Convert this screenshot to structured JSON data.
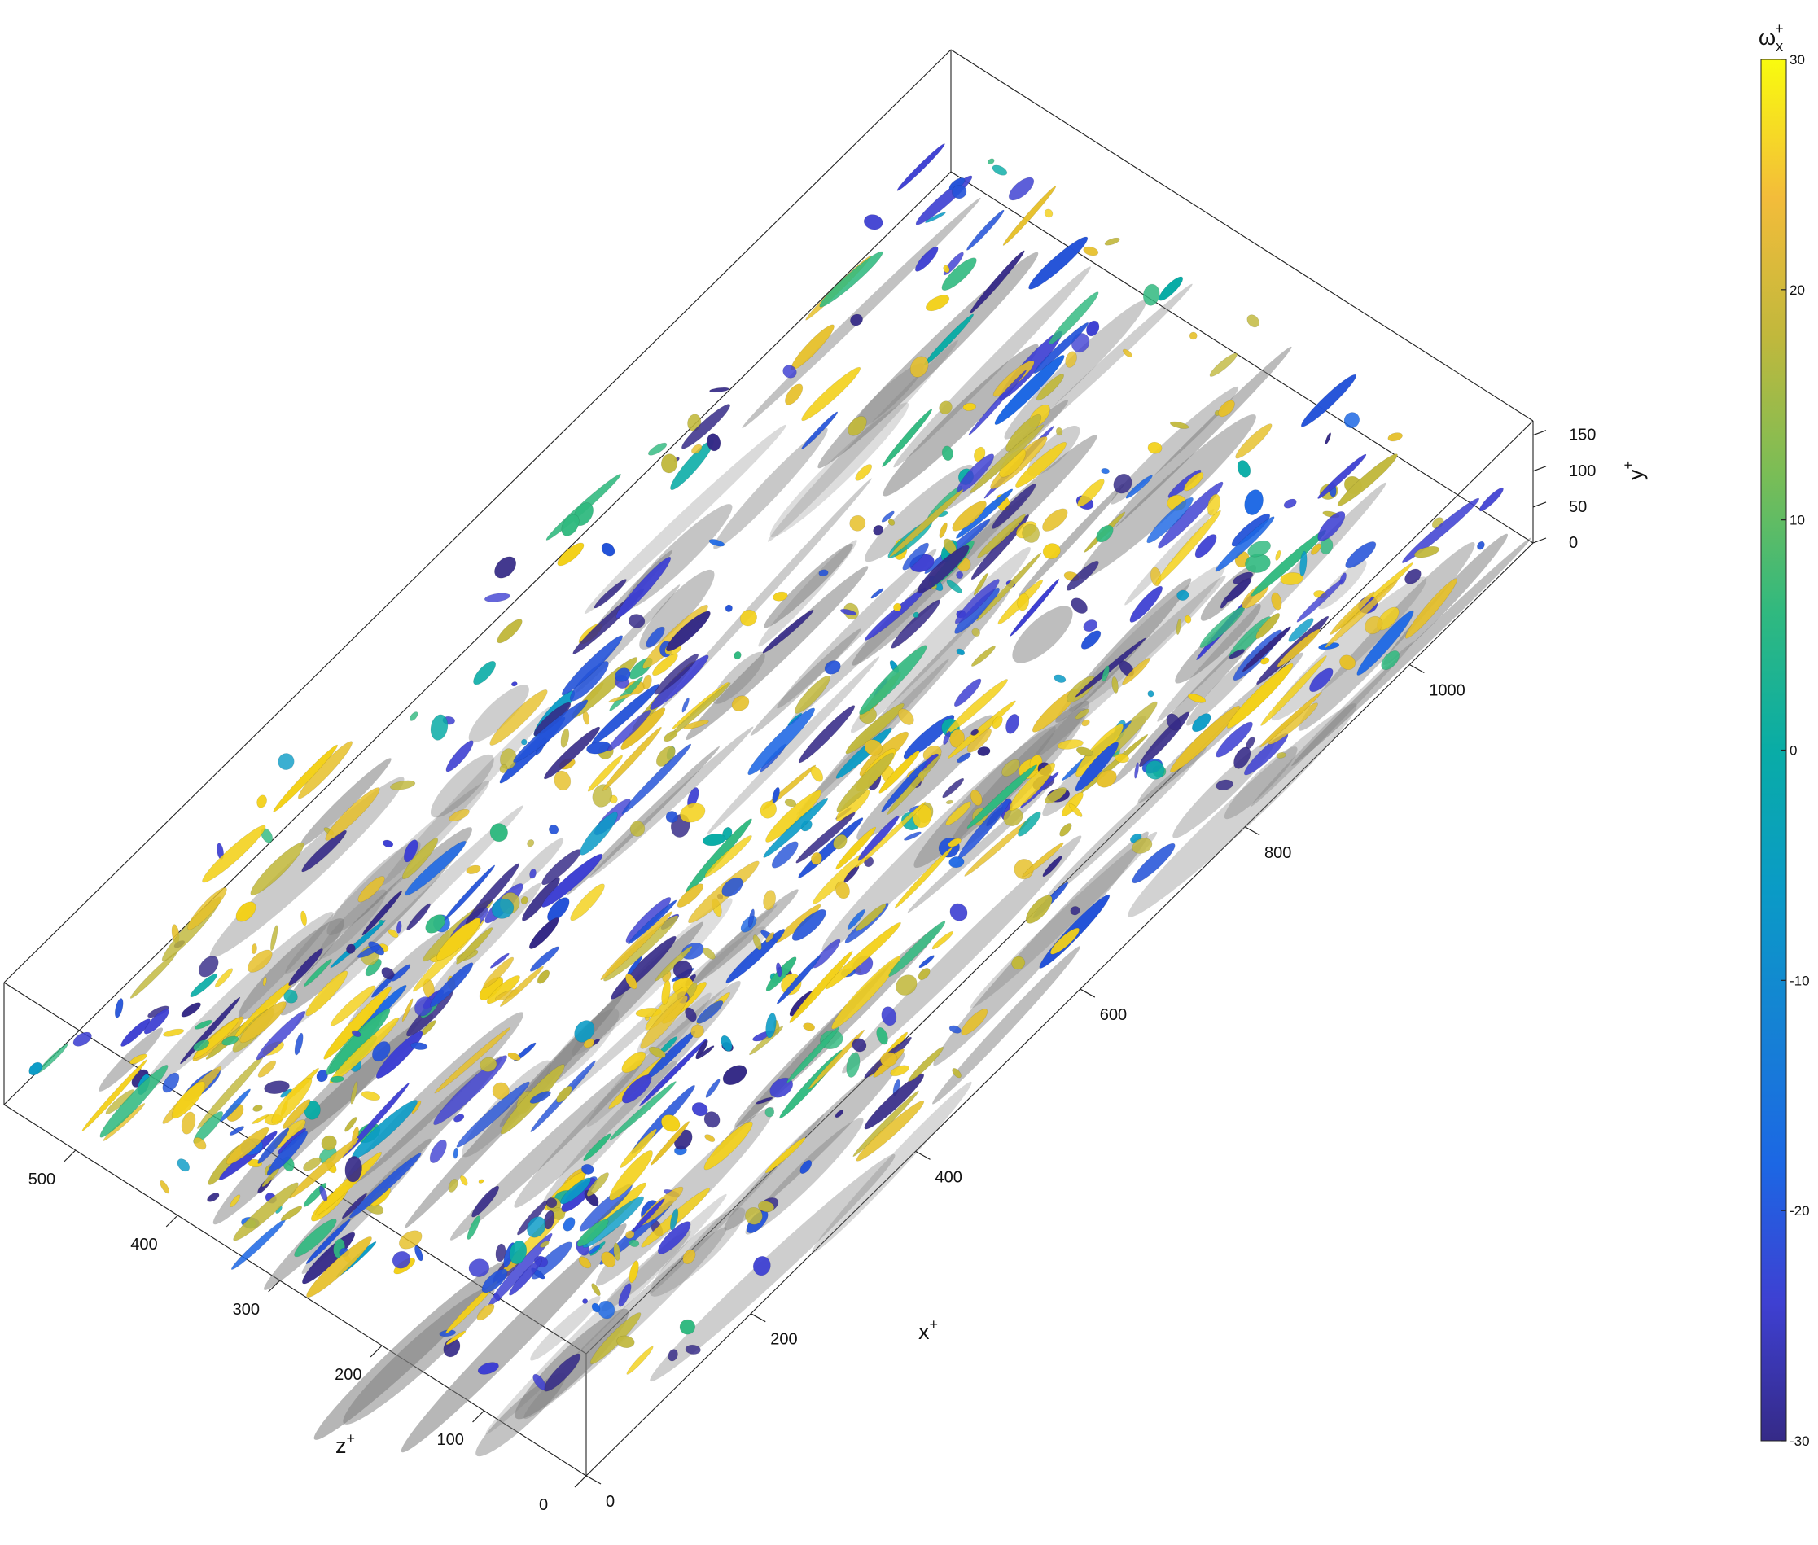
{
  "chart_data": {
    "type": "isosurface-3d",
    "axes": {
      "x": {
        "label": "x",
        "sup": "+",
        "ticks": [
          0,
          200,
          400,
          600,
          800,
          1000
        ],
        "range": [
          0,
          1150
        ]
      },
      "y": {
        "label": "y",
        "sup": "+",
        "ticks": [
          0,
          50,
          100,
          150
        ],
        "range": [
          0,
          170
        ]
      },
      "z": {
        "label": "z",
        "sup": "+",
        "ticks": [
          0,
          100,
          200,
          300,
          400,
          500
        ],
        "range": [
          0,
          570
        ]
      }
    },
    "colorbar": {
      "label_main": "ω",
      "label_sub": "x",
      "label_sup": "+",
      "ticks": [
        -30,
        -20,
        -10,
        0,
        10,
        20,
        30
      ],
      "range": [
        -30,
        30
      ],
      "colormap": "parula"
    },
    "colors": {
      "shadow": "#7a7a7a",
      "positive": "#e0c020",
      "negative": "#3a2fb0",
      "mid": "#1ab5a8"
    }
  }
}
